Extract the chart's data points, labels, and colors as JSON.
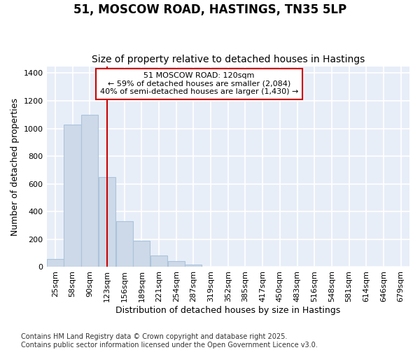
{
  "title": "51, MOSCOW ROAD, HASTINGS, TN35 5LP",
  "subtitle": "Size of property relative to detached houses in Hastings",
  "xlabel": "Distribution of detached houses by size in Hastings",
  "ylabel": "Number of detached properties",
  "bin_labels": [
    "25sqm",
    "58sqm",
    "90sqm",
    "123sqm",
    "156sqm",
    "189sqm",
    "221sqm",
    "254sqm",
    "287sqm",
    "319sqm",
    "352sqm",
    "385sqm",
    "417sqm",
    "450sqm",
    "483sqm",
    "516sqm",
    "548sqm",
    "581sqm",
    "614sqm",
    "646sqm",
    "679sqm"
  ],
  "values": [
    60,
    1030,
    1100,
    650,
    330,
    190,
    85,
    45,
    20,
    0,
    0,
    0,
    0,
    0,
    0,
    0,
    0,
    0,
    0,
    0,
    0
  ],
  "bar_color": "#cdd9e8",
  "bar_edgecolor": "#aac4dc",
  "bar_linewidth": 0.8,
  "vline_x": 3,
  "vline_color": "#cc0000",
  "vline_linewidth": 1.5,
  "annotation_text": "51 MOSCOW ROAD: 120sqm\n← 59% of detached houses are smaller (2,084)\n40% of semi-detached houses are larger (1,430) →",
  "annotation_box_facecolor": "white",
  "annotation_box_edgecolor": "#cc0000",
  "ylim": [
    0,
    1450
  ],
  "yticks": [
    0,
    200,
    400,
    600,
    800,
    1000,
    1200,
    1400
  ],
  "bg_color": "#ffffff",
  "plot_bg_color": "#e8eef8",
  "grid_color": "#ffffff",
  "footer_text": "Contains HM Land Registry data © Crown copyright and database right 2025.\nContains public sector information licensed under the Open Government Licence v3.0.",
  "title_fontsize": 12,
  "subtitle_fontsize": 10,
  "ylabel_fontsize": 9,
  "xlabel_fontsize": 9,
  "tick_fontsize": 8,
  "annotation_fontsize": 8,
  "footer_fontsize": 7
}
